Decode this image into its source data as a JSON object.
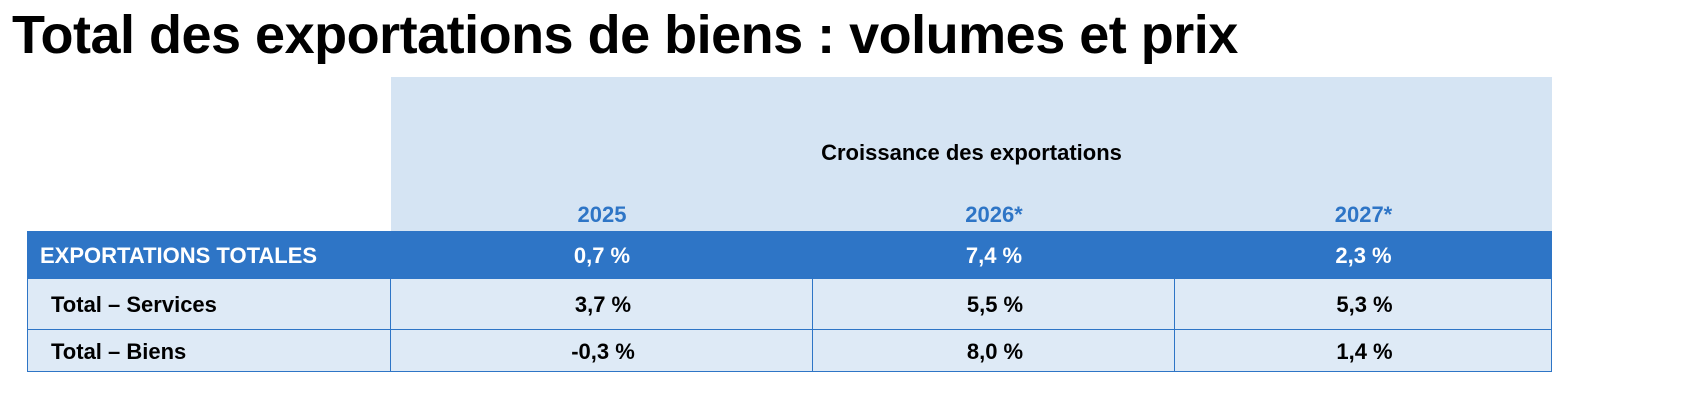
{
  "title": "Total des exportations de biens : volumes et prix",
  "table": {
    "header": "Croissance des exportations",
    "years": [
      "2025",
      "2026*",
      "2027*"
    ],
    "rows": [
      {
        "label": "EXPORTATIONS TOTALES",
        "values": [
          "0,7 %",
          "7,4 %",
          "2,3 %"
        ]
      },
      {
        "label": "Total – Services",
        "values": [
          "3,7 %",
          "5,5 %",
          "5,3 %"
        ]
      },
      {
        "label": "Total – Biens",
        "values": [
          "-0,3 %",
          "8,0 %",
          "1,4 %"
        ]
      }
    ]
  },
  "colors": {
    "accent": "#2e75c6",
    "header_bg": "#d5e4f3",
    "row_bg": "#deeaf6"
  }
}
